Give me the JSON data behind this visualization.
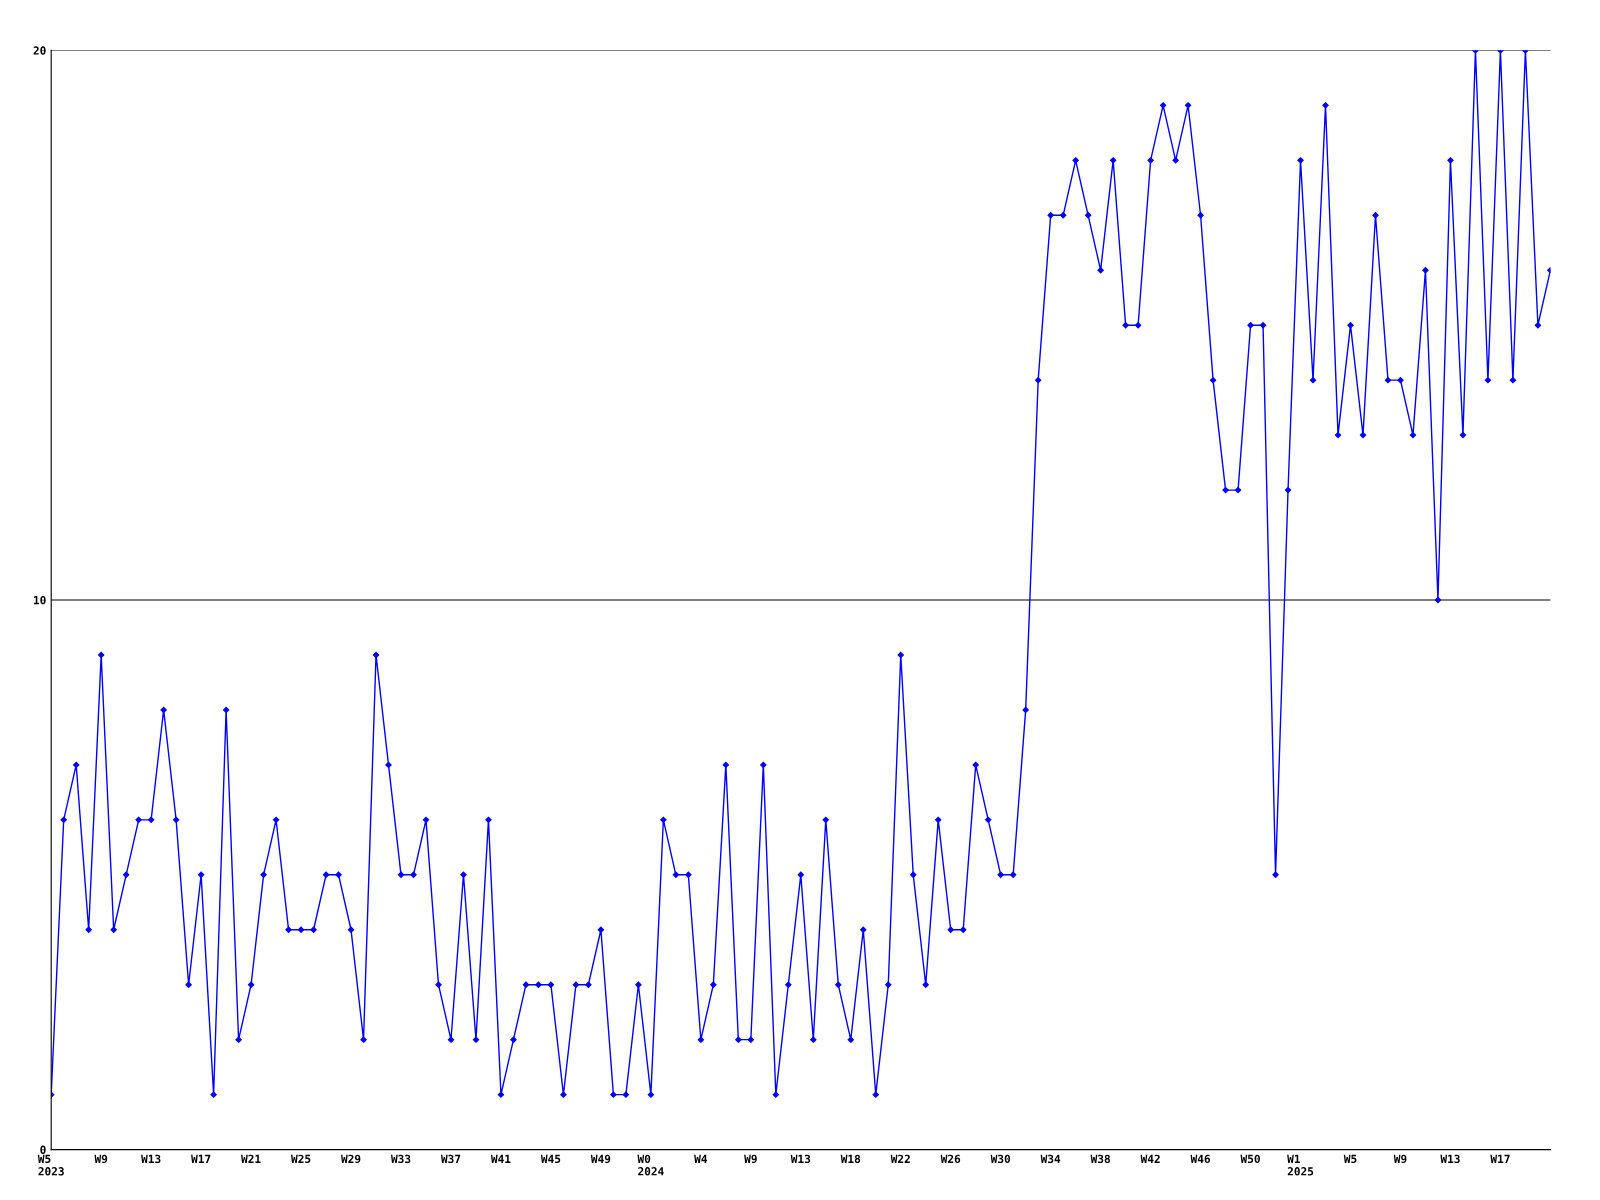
{
  "chart_data": {
    "type": "line",
    "categories": [
      "W5\n2023",
      null,
      null,
      null,
      "W9",
      null,
      null,
      null,
      "W13",
      null,
      null,
      null,
      "W17",
      null,
      null,
      null,
      "W21",
      null,
      null,
      null,
      "W25",
      null,
      null,
      null,
      "W29",
      null,
      null,
      null,
      "W33",
      null,
      null,
      null,
      "W37",
      null,
      null,
      null,
      "W41",
      null,
      null,
      null,
      "W45",
      null,
      null,
      null,
      "W49",
      null,
      null,
      null,
      "W0\n2024",
      null,
      null,
      null,
      "W4",
      null,
      null,
      null,
      "W9",
      null,
      null,
      null,
      "W13",
      null,
      null,
      null,
      "W18",
      null,
      null,
      null,
      "W22",
      null,
      null,
      null,
      "W26",
      null,
      null,
      null,
      "W30",
      null,
      null,
      null,
      "W34",
      null,
      null,
      null,
      "W38",
      null,
      null,
      null,
      "W42",
      null,
      null,
      null,
      "W46",
      null,
      null,
      null,
      "W50",
      null,
      null,
      null,
      "W1\n2025",
      null,
      null,
      null,
      "W5",
      null,
      null,
      null,
      "W9",
      null,
      null,
      null,
      "W13",
      null,
      null,
      null,
      "W17",
      null,
      null,
      null,
      null
    ],
    "series": [
      {
        "color": "#0000ff",
        "values": [
          1,
          6,
          7,
          4,
          9,
          4,
          5,
          6,
          6,
          8,
          6,
          3,
          5,
          1,
          8,
          2,
          3,
          5,
          6,
          4,
          4,
          4,
          5,
          5,
          4,
          2,
          9,
          7,
          5,
          5,
          6,
          3,
          2,
          5,
          2,
          6,
          1,
          2,
          3,
          3,
          3,
          1,
          3,
          3,
          4,
          1,
          1,
          3,
          1,
          6,
          5,
          5,
          2,
          3,
          7,
          2,
          2,
          7,
          1,
          3,
          5,
          2,
          6,
          3,
          2,
          4,
          1,
          3,
          9,
          5,
          3,
          6,
          4,
          4,
          7,
          6,
          5,
          5,
          8,
          14,
          17,
          17,
          18,
          17,
          16,
          18,
          15,
          15,
          18,
          19,
          18,
          19,
          17,
          14,
          12,
          12,
          15,
          15,
          5,
          12,
          18,
          14,
          19,
          13,
          15,
          13,
          17,
          14,
          14,
          13,
          16,
          10,
          18,
          13,
          20,
          14,
          20,
          14,
          20,
          15,
          16
        ]
      }
    ],
    "ylim": [
      0,
      20
    ],
    "yticks": [
      0,
      10,
      20
    ],
    "grid": "y",
    "marker": "diamond",
    "line_style": "solid"
  }
}
